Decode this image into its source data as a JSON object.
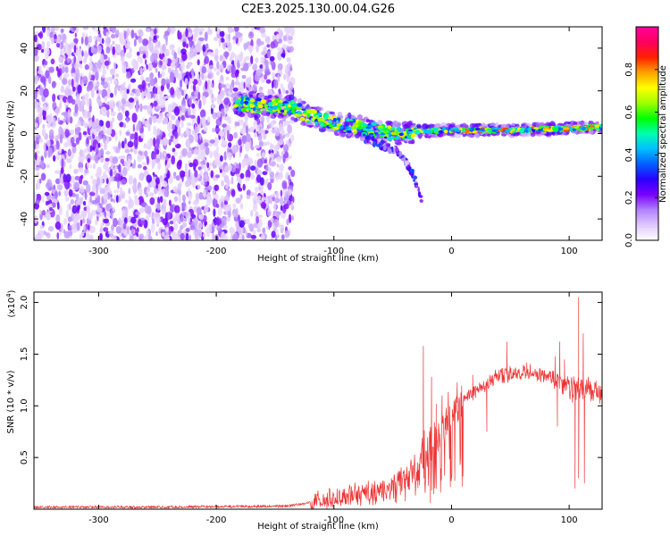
{
  "title": "C2E3.2025.130.00.04.G26",
  "chart_data": [
    {
      "type": "heatmap",
      "xlabel": "Height of straight line (km)",
      "ylabel": "Frequency (Hz)",
      "xlim": [
        -355,
        128
      ],
      "ylim": [
        -50,
        50
      ],
      "xticks": [
        -300,
        -200,
        -100,
        0,
        100
      ],
      "yticks": [
        -40,
        -20,
        0,
        20,
        40
      ],
      "colorbar": {
        "label": "Normalized spectral amplitude",
        "range": [
          0,
          1
        ],
        "ticks": [
          "0.0",
          "0.2",
          "0.4",
          "0.6",
          "0.8"
        ],
        "colors": [
          "#ffffff",
          "#e0c8ff",
          "#b080ff",
          "#7a00ff",
          "#2a00ff",
          "#0060ff",
          "#00c0ff",
          "#00ffb0",
          "#00ff00",
          "#a0ff00",
          "#ffff00",
          "#ffa000",
          "#ff2000",
          "#ff0060",
          "#ff0099"
        ]
      },
      "features": [
        {
          "name": "noise",
          "x_range": [
            -355,
            -135
          ],
          "y_range": [
            -50,
            50
          ],
          "amplitude": [
            0.05,
            0.25
          ]
        },
        {
          "name": "trace",
          "points": [
            [
              -185,
              14
            ],
            [
              -160,
              13
            ],
            [
              -135,
              12
            ],
            [
              -120,
              8
            ],
            [
              -100,
              5
            ],
            [
              -80,
              3
            ],
            [
              -60,
              1
            ],
            [
              -45,
              0
            ],
            [
              -30,
              1
            ],
            [
              0,
              1.5
            ],
            [
              40,
              1.5
            ],
            [
              80,
              2
            ],
            [
              128,
              3
            ]
          ],
          "amplitude": [
            0.3,
            0.9
          ]
        },
        {
          "name": "spur",
          "points": [
            [
              -75,
              -2
            ],
            [
              -60,
              -5
            ],
            [
              -48,
              -8
            ],
            [
              -40,
              -12
            ],
            [
              -32,
              -20
            ],
            [
              -25,
              -32
            ]
          ],
          "amplitude": [
            0.05,
            0.35
          ]
        }
      ]
    },
    {
      "type": "line",
      "xlabel": "Height of straight line (km)",
      "ylabel": "SNR (10 * v/v)",
      "multiplier": "(x10",
      "multiplier_exp": "4",
      "xlim": [
        -355,
        128
      ],
      "ylim": [
        0,
        2.1
      ],
      "xticks": [
        -300,
        -200,
        -100,
        0,
        100
      ],
      "yticks": [
        "0.5",
        "1.0",
        "1.5",
        "2.0"
      ],
      "color": "#ee3333",
      "envelope_x": [
        -355,
        -250,
        -140,
        -110,
        -90,
        -60,
        -40,
        -20,
        0,
        20,
        40,
        60,
        80,
        95,
        110,
        128
      ],
      "envelope_y": [
        0.02,
        0.02,
        0.03,
        0.08,
        0.12,
        0.2,
        0.3,
        0.55,
        0.95,
        1.15,
        1.28,
        1.33,
        1.3,
        1.2,
        1.15,
        1.12
      ],
      "spikes": [
        [
          -24,
          1.58
        ],
        [
          -17,
          1.28
        ],
        [
          -13,
          1.02
        ],
        [
          -8,
          1.1
        ],
        [
          18,
          1.3
        ],
        [
          47,
          1.62
        ],
        [
          64,
          1.42
        ],
        [
          88,
          1.48
        ],
        [
          92,
          1.62
        ],
        [
          96,
          1.45
        ],
        [
          108,
          2.05
        ],
        [
          112,
          1.7
        ]
      ],
      "dips": [
        [
          -18,
          0.06
        ],
        [
          -13,
          0.2
        ],
        [
          30,
          0.75
        ],
        [
          90,
          0.8
        ],
        [
          105,
          0.2
        ],
        [
          108,
          0.3
        ],
        [
          113,
          0.25
        ]
      ]
    }
  ]
}
